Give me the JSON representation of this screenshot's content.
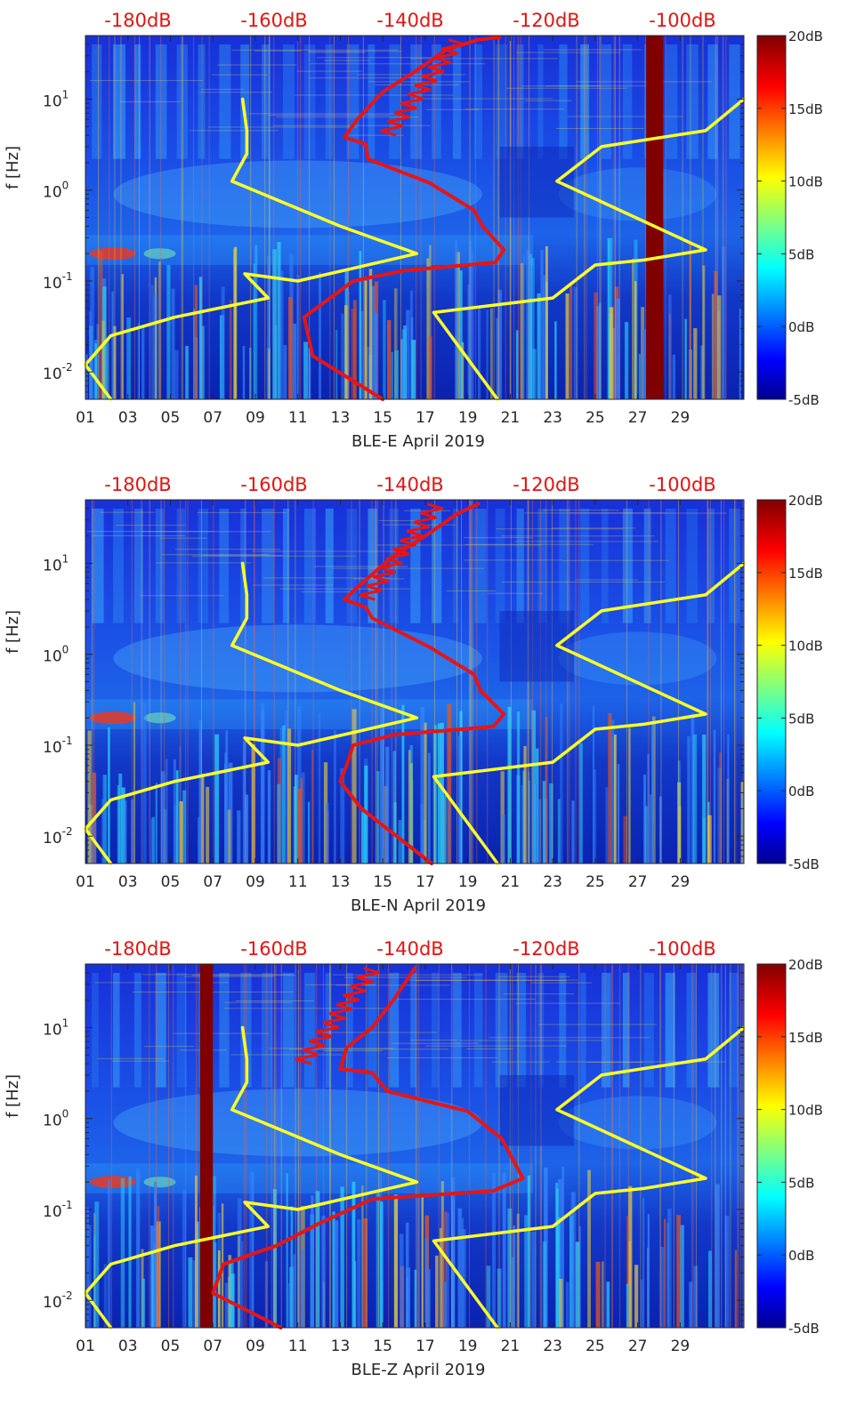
{
  "chart_data": [
    {
      "type": "heatmap",
      "title": "BLE-E April 2019",
      "xlabel": "BLE-E April 2019",
      "ylabel": "f [Hz]",
      "x_ticks": [
        "01",
        "03",
        "05",
        "07",
        "09",
        "11",
        "13",
        "15",
        "17",
        "19",
        "21",
        "23",
        "25",
        "27",
        "29"
      ],
      "x_range_days": [
        1,
        31
      ],
      "y_scale": "log",
      "y_range_hz": [
        0.005,
        50
      ],
      "y_ticks": [
        {
          "value": 10,
          "label": "10",
          "exp": "1"
        },
        {
          "value": 1,
          "label": "10",
          "exp": "0"
        },
        {
          "value": 0.1,
          "label": "10",
          "exp": "-1"
        },
        {
          "value": 0.01,
          "label": "10",
          "exp": "-2"
        }
      ],
      "top_axis_labels": [
        "-180dB",
        "-160dB",
        "-140dB",
        "-120dB",
        "-100dB"
      ],
      "colorbar_labels": [
        "20dB",
        "15dB",
        "10dB",
        "5dB",
        "0dB",
        "-5dB"
      ],
      "gap_days": [
        [
          26.4,
          27.2
        ]
      ],
      "series": [
        {
          "name": "noise model",
          "color": "#ffff2a",
          "points": [
            [
              7.4,
              10
            ],
            [
              7.6,
              4.5
            ],
            [
              7.6,
              2.5
            ],
            [
              6.9,
              1.25
            ],
            [
              12,
              0.4
            ],
            [
              15.6,
              0.2
            ],
            [
              10,
              0.1
            ],
            [
              7.5,
              0.12
            ],
            [
              8.6,
              0.065
            ],
            [
              4.2,
              0.04
            ],
            [
              1.2,
              0.025
            ],
            [
              0,
              0.012
            ]
          ]
        },
        {
          "name": "noise model (right)",
          "color": "#ffff2a",
          "points": [
            [
              31,
              10
            ],
            [
              29.2,
              4.5
            ],
            [
              24.3,
              3
            ],
            [
              22.2,
              1.25
            ],
            [
              29.2,
              0.22
            ],
            [
              26.3,
              0.17
            ],
            [
              24,
              0.15
            ],
            [
              22,
              0.065
            ],
            [
              16.4,
              0.045
            ],
            [
              19.4,
              0.005
            ]
          ]
        },
        {
          "name": "noise model (left tail)",
          "color": "#ffff2a",
          "points": [
            [
              0,
              0.012
            ],
            [
              1.2,
              0.005
            ]
          ]
        },
        {
          "name": "PSD",
          "color": "#e61515",
          "points": [
            [
              19.5,
              48
            ],
            [
              18.5,
              45
            ],
            [
              17,
              35
            ],
            [
              15.5,
              20
            ],
            [
              14,
              12
            ],
            [
              12.8,
              6
            ],
            [
              12.2,
              3.8
            ],
            [
              13.2,
              3.2
            ],
            [
              13.3,
              2.2
            ],
            [
              16.2,
              1.2
            ],
            [
              18.3,
              0.6
            ],
            [
              18.7,
              0.4
            ],
            [
              19.7,
              0.22
            ],
            [
              19.3,
              0.16
            ],
            [
              15,
              0.13
            ],
            [
              12.6,
              0.1
            ],
            [
              10.3,
              0.04
            ],
            [
              10.7,
              0.015
            ],
            [
              14,
              0.005
            ]
          ]
        }
      ]
    },
    {
      "type": "heatmap",
      "title": "BLE-N April 2019",
      "xlabel": "BLE-N April 2019",
      "ylabel": "f [Hz]",
      "x_ticks": [
        "01",
        "03",
        "05",
        "07",
        "09",
        "11",
        "13",
        "15",
        "17",
        "19",
        "21",
        "23",
        "25",
        "27",
        "29"
      ],
      "x_range_days": [
        1,
        31
      ],
      "y_scale": "log",
      "y_range_hz": [
        0.005,
        50
      ],
      "y_ticks": [
        {
          "value": 10,
          "label": "10",
          "exp": "1"
        },
        {
          "value": 1,
          "label": "10",
          "exp": "0"
        },
        {
          "value": 0.1,
          "label": "10",
          "exp": "-1"
        },
        {
          "value": 0.01,
          "label": "10",
          "exp": "-2"
        }
      ],
      "top_axis_labels": [
        "-180dB",
        "-160dB",
        "-140dB",
        "-120dB",
        "-100dB"
      ],
      "colorbar_labels": [
        "20dB",
        "15dB",
        "10dB",
        "5dB",
        "0dB",
        "-5dB"
      ],
      "gap_days": [],
      "series": [
        {
          "name": "noise model",
          "color": "#ffff2a",
          "points": [
            [
              7.4,
              10
            ],
            [
              7.6,
              4.5
            ],
            [
              7.6,
              2.5
            ],
            [
              6.9,
              1.25
            ],
            [
              12,
              0.4
            ],
            [
              15.6,
              0.2
            ],
            [
              10,
              0.1
            ],
            [
              7.5,
              0.12
            ],
            [
              8.6,
              0.065
            ],
            [
              4.2,
              0.04
            ],
            [
              1.2,
              0.025
            ],
            [
              0,
              0.012
            ]
          ]
        },
        {
          "name": "noise model (right)",
          "color": "#ffff2a",
          "points": [
            [
              31,
              10
            ],
            [
              29.2,
              4.5
            ],
            [
              24.3,
              3
            ],
            [
              22.2,
              1.25
            ],
            [
              29.2,
              0.22
            ],
            [
              26.3,
              0.17
            ],
            [
              24,
              0.15
            ],
            [
              22,
              0.065
            ],
            [
              16.4,
              0.045
            ],
            [
              19.4,
              0.005
            ]
          ]
        },
        {
          "name": "noise model (left tail)",
          "color": "#ffff2a",
          "points": [
            [
              0,
              0.012
            ],
            [
              1.2,
              0.005
            ]
          ]
        },
        {
          "name": "PSD",
          "color": "#e61515",
          "points": [
            [
              18.5,
              45
            ],
            [
              17.5,
              35
            ],
            [
              16,
              20
            ],
            [
              14.5,
              12
            ],
            [
              13,
              6
            ],
            [
              12.2,
              4
            ],
            [
              13.2,
              3.3
            ],
            [
              13.5,
              2.5
            ],
            [
              16.2,
              1.2
            ],
            [
              18.3,
              0.6
            ],
            [
              18.6,
              0.4
            ],
            [
              19.7,
              0.22
            ],
            [
              19.2,
              0.16
            ],
            [
              14.5,
              0.13
            ],
            [
              12.6,
              0.1
            ],
            [
              12.3,
              0.06
            ],
            [
              12,
              0.04
            ],
            [
              13,
              0.02
            ],
            [
              16.3,
              0.005
            ]
          ]
        }
      ]
    },
    {
      "type": "heatmap",
      "title": "BLE-Z April 2019",
      "xlabel": "BLE-Z April 2019",
      "ylabel": "f [Hz]",
      "x_ticks": [
        "01",
        "03",
        "05",
        "07",
        "09",
        "11",
        "13",
        "15",
        "17",
        "19",
        "21",
        "23",
        "25",
        "27",
        "29"
      ],
      "x_range_days": [
        1,
        31
      ],
      "y_scale": "log",
      "y_range_hz": [
        0.005,
        50
      ],
      "y_ticks": [
        {
          "value": 10,
          "label": "10",
          "exp": "1"
        },
        {
          "value": 1,
          "label": "10",
          "exp": "0"
        },
        {
          "value": 0.1,
          "label": "10",
          "exp": "-1"
        },
        {
          "value": 0.01,
          "label": "10",
          "exp": "-2"
        }
      ],
      "top_axis_labels": [
        "-180dB",
        "-160dB",
        "-140dB",
        "-120dB",
        "-100dB"
      ],
      "colorbar_labels": [
        "20dB",
        "15dB",
        "10dB",
        "5dB",
        "0dB",
        "-5dB"
      ],
      "gap_days": [
        [
          5.4,
          6.0
        ]
      ],
      "series": [
        {
          "name": "noise model",
          "color": "#ffff2a",
          "points": [
            [
              7.4,
              10
            ],
            [
              7.6,
              4.5
            ],
            [
              7.6,
              2.5
            ],
            [
              6.9,
              1.25
            ],
            [
              12,
              0.4
            ],
            [
              15.6,
              0.2
            ],
            [
              10,
              0.1
            ],
            [
              7.5,
              0.12
            ],
            [
              8.6,
              0.065
            ],
            [
              4.2,
              0.04
            ],
            [
              1.2,
              0.025
            ],
            [
              0,
              0.012
            ]
          ]
        },
        {
          "name": "noise model (right)",
          "color": "#ffff2a",
          "points": [
            [
              31,
              10
            ],
            [
              29.2,
              4.5
            ],
            [
              24.3,
              3
            ],
            [
              22.2,
              1.25
            ],
            [
              29.2,
              0.22
            ],
            [
              26.3,
              0.17
            ],
            [
              24,
              0.15
            ],
            [
              22,
              0.065
            ],
            [
              16.4,
              0.045
            ],
            [
              19.4,
              0.005
            ]
          ]
        },
        {
          "name": "noise model (left tail)",
          "color": "#ffff2a",
          "points": [
            [
              0,
              0.012
            ],
            [
              1.2,
              0.005
            ]
          ]
        },
        {
          "name": "PSD",
          "color": "#e61515",
          "points": [
            [
              15.5,
              45
            ],
            [
              15,
              30
            ],
            [
              14.5,
              20
            ],
            [
              13.5,
              10
            ],
            [
              12.3,
              6
            ],
            [
              12,
              3.5
            ],
            [
              13.5,
              3.2
            ],
            [
              14.2,
              2
            ],
            [
              18,
              1.2
            ],
            [
              19.6,
              0.6
            ],
            [
              20,
              0.4
            ],
            [
              20.6,
              0.22
            ],
            [
              19.2,
              0.16
            ],
            [
              13.5,
              0.13
            ],
            [
              11,
              0.07
            ],
            [
              9,
              0.04
            ],
            [
              6.5,
              0.025
            ],
            [
              6,
              0.012
            ],
            [
              7.5,
              0.008
            ],
            [
              9.2,
              0.005
            ]
          ]
        }
      ]
    }
  ]
}
